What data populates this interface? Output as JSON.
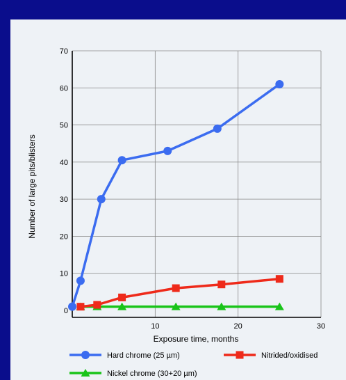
{
  "colors": {
    "frame": "#0a0d8c",
    "panel": "#eef2f6",
    "hard_chrome": "#3b6cf0",
    "nitrided": "#ee2a1a",
    "nickel": "#19c419",
    "grid": "#888888",
    "axis": "#000000"
  },
  "chart_data": {
    "type": "line",
    "title": "",
    "xlabel": "Exposure time, months",
    "ylabel": "Number of large pits/blisters",
    "xlim": [
      0,
      30
    ],
    "ylim": [
      0,
      70
    ],
    "x_ticks": [
      "10",
      "20",
      "30"
    ],
    "y_ticks": [
      "0",
      "10",
      "20",
      "30",
      "40",
      "50",
      "60",
      "70"
    ],
    "grid": true,
    "series": [
      {
        "name": "Hard chrome (25 µm)",
        "marker": "circle",
        "color": "#3b6cf0",
        "x": [
          0,
          1,
          3.5,
          6,
          11.5,
          17.5,
          25
        ],
        "y": [
          1,
          8,
          30,
          40.5,
          43,
          49,
          61
        ]
      },
      {
        "name": "Nitrided/oxidised",
        "marker": "square",
        "color": "#ee2a1a",
        "x": [
          1,
          3,
          6,
          12.5,
          18,
          25
        ],
        "y": [
          1,
          1.5,
          3.5,
          6,
          7,
          8.5
        ]
      },
      {
        "name": "Nickel chrome (30+20 µm)",
        "marker": "triangle",
        "color": "#19c419",
        "x": [
          1,
          3,
          6,
          12.5,
          18,
          25
        ],
        "y": [
          1,
          1,
          1,
          1,
          1,
          1
        ]
      }
    ],
    "legend_position": "bottom"
  }
}
